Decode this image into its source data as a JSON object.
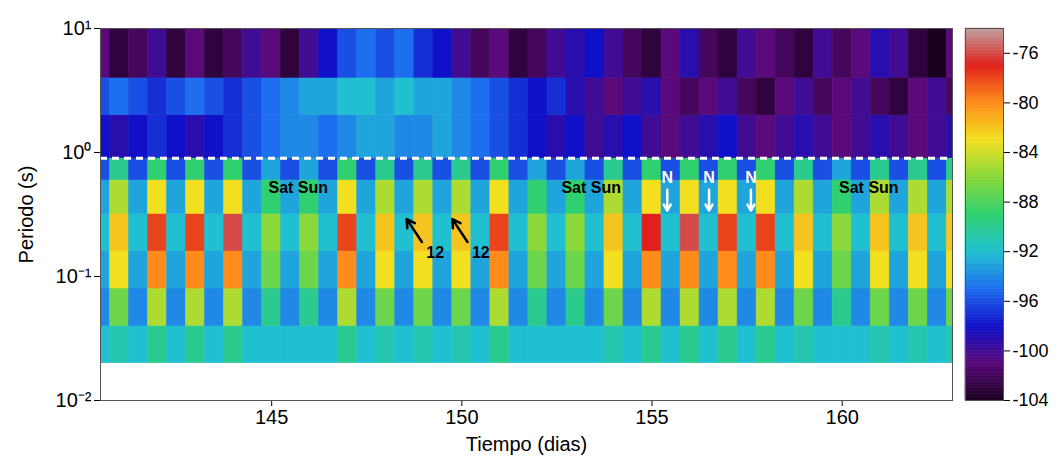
{
  "chart_data": {
    "type": "heatmap",
    "x_label": "Tiempo (dias)",
    "y_label": "Periodo (s)",
    "xlim": [
      140.5,
      162.9
    ],
    "xticks": [
      145,
      150,
      155,
      160
    ],
    "ylim": [
      0.01,
      10
    ],
    "yticks": [
      {
        "value": 0.01,
        "label": "10⁻²"
      },
      {
        "value": 0.1,
        "label": "10⁻¹"
      },
      {
        "value": 1,
        "label": "10⁰"
      },
      {
        "value": 10,
        "label": "10¹"
      }
    ],
    "log": "y",
    "grid": false,
    "cells": {
      "x_edges": [
        140.25,
        140.75,
        141.25,
        141.75,
        142.25,
        142.75,
        143.25,
        143.75,
        144.25,
        144.75,
        145.25,
        145.75,
        146.25,
        146.75,
        147.25,
        147.75,
        148.25,
        148.75,
        149.25,
        149.75,
        150.25,
        150.75,
        151.25,
        151.75,
        152.25,
        152.75,
        153.25,
        153.75,
        154.25,
        154.75,
        155.25,
        155.75,
        156.25,
        156.75,
        157.25,
        157.75,
        158.25,
        158.75,
        159.25,
        159.75,
        160.25,
        160.75,
        161.25,
        161.75,
        162.25,
        162.75,
        163.25
      ],
      "y_edges": [
        0.02,
        0.04,
        0.08,
        0.16,
        0.32,
        0.6,
        0.9,
        2,
        4,
        10
      ],
      "values": [
        [
          -92,
          -91,
          -92,
          -90,
          -92,
          -90,
          -92,
          -90,
          -92,
          -92,
          -92,
          -92,
          -92,
          -90,
          -92,
          -91,
          -92,
          -91,
          -92,
          -91,
          -92,
          -90,
          -92,
          -92,
          -92,
          -92,
          -92,
          -91,
          -92,
          -90,
          -92,
          -90,
          -92,
          -90,
          -92,
          -90,
          -92,
          -91,
          -92,
          -92,
          -92,
          -91,
          -92,
          -91,
          -92,
          -91
        ],
        [
          -94,
          -87,
          -94,
          -85,
          -94,
          -85,
          -94,
          -85,
          -94,
          -90,
          -94,
          -90,
          -94,
          -85,
          -94,
          -87,
          -94,
          -87,
          -94,
          -87,
          -94,
          -85,
          -94,
          -90,
          -94,
          -90,
          -94,
          -87,
          -94,
          -85,
          -94,
          -85,
          -94,
          -85,
          -94,
          -85,
          -94,
          -87,
          -94,
          -90,
          -94,
          -87,
          -94,
          -87,
          -94,
          -87
        ],
        [
          -93,
          -83,
          -93,
          -80,
          -93,
          -80,
          -93,
          -80,
          -93,
          -87,
          -93,
          -87,
          -93,
          -80,
          -93,
          -83,
          -93,
          -83,
          -93,
          -83,
          -93,
          -80,
          -93,
          -87,
          -93,
          -87,
          -93,
          -83,
          -93,
          -80,
          -93,
          -80,
          -93,
          -80,
          -93,
          -80,
          -93,
          -83,
          -93,
          -87,
          -93,
          -83,
          -93,
          -83,
          -93,
          -83
        ],
        [
          -92,
          -82,
          -92,
          -78,
          -92,
          -78,
          -92,
          -76,
          -92,
          -86,
          -92,
          -86,
          -92,
          -78,
          -92,
          -82,
          -92,
          -82,
          -92,
          -82,
          -92,
          -78,
          -92,
          -86,
          -92,
          -86,
          -92,
          -82,
          -92,
          -77,
          -92,
          -76,
          -92,
          -78,
          -92,
          -78,
          -92,
          -82,
          -92,
          -86,
          -92,
          -82,
          -92,
          -82,
          -92,
          -82
        ],
        [
          -93,
          -85,
          -93,
          -83,
          -93,
          -83,
          -93,
          -83,
          -93,
          -89,
          -93,
          -89,
          -93,
          -83,
          -93,
          -85,
          -93,
          -85,
          -93,
          -85,
          -93,
          -83,
          -93,
          -89,
          -93,
          -89,
          -93,
          -85,
          -93,
          -83,
          -93,
          -83,
          -93,
          -83,
          -93,
          -83,
          -93,
          -85,
          -93,
          -89,
          -93,
          -85,
          -93,
          -85,
          -93,
          -85
        ],
        [
          -96,
          -90,
          -96,
          -89,
          -96,
          -89,
          -96,
          -89,
          -96,
          -93,
          -96,
          -93,
          -96,
          -89,
          -96,
          -90,
          -96,
          -90,
          -96,
          -90,
          -96,
          -89,
          -96,
          -93,
          -96,
          -93,
          -96,
          -90,
          -96,
          -89,
          -96,
          -89,
          -96,
          -89,
          -96,
          -89,
          -96,
          -90,
          -96,
          -93,
          -96,
          -90,
          -96,
          -90,
          -96,
          -90
        ],
        [
          -98,
          -99,
          -98,
          -97,
          -98,
          -99,
          -98,
          -97,
          -96,
          -95,
          -94,
          -94,
          -95,
          -94,
          -93,
          -93,
          -94,
          -94,
          -93,
          -94,
          -95,
          -96,
          -97,
          -98,
          -99,
          -98,
          -100,
          -99,
          -98,
          -100,
          -101,
          -100,
          -99,
          -98,
          -100,
          -101,
          -100,
          -99,
          -100,
          -101,
          -100,
          -99,
          -100,
          -101,
          -100,
          -99
        ],
        [
          -96,
          -95,
          -96,
          -97,
          -96,
          -95,
          -96,
          -97,
          -96,
          -95,
          -94,
          -93,
          -93,
          -92,
          -92,
          -93,
          -92,
          -93,
          -93,
          -94,
          -95,
          -96,
          -97,
          -98,
          -97,
          -99,
          -100,
          -101,
          -100,
          -99,
          -101,
          -102,
          -101,
          -100,
          -102,
          -103,
          -101,
          -100,
          -102,
          -101,
          -100,
          -102,
          -103,
          -101,
          -100,
          -102
        ],
        [
          -101,
          -103,
          -102,
          -100,
          -103,
          -101,
          -103,
          -102,
          -100,
          -101,
          -103,
          -100,
          -98,
          -96,
          -95,
          -96,
          -95,
          -97,
          -98,
          -100,
          -102,
          -101,
          -103,
          -102,
          -100,
          -99,
          -98,
          -100,
          -102,
          -103,
          -101,
          -99,
          -102,
          -103,
          -100,
          -101,
          -102,
          -103,
          -100,
          -102,
          -101,
          -99,
          -100,
          -103,
          -104,
          -101
        ]
      ]
    },
    "colorbar": {
      "range": [
        -104,
        -74
      ],
      "ticks": [
        -104,
        -100,
        -96,
        -92,
        -88,
        -84,
        -80,
        -76
      ]
    },
    "reference_lines": [
      {
        "y": 0.9,
        "color": "white",
        "line_style": "dashed"
      }
    ],
    "annotations": [
      {
        "text": "Sat Sun",
        "x": 145.7,
        "y": 0.52,
        "color": "black"
      },
      {
        "text": "Sat Sun",
        "x": 153.4,
        "y": 0.52,
        "color": "black"
      },
      {
        "text": "Sat Sun",
        "x": 160.7,
        "y": 0.52,
        "color": "black"
      },
      {
        "text": "12",
        "x": 149.3,
        "y": 0.155,
        "color": "black"
      },
      {
        "text": "12",
        "x": 150.5,
        "y": 0.155,
        "color": "black"
      },
      {
        "text": "N",
        "x": 155.4,
        "y": 0.62,
        "color": "white"
      },
      {
        "text": "N",
        "x": 156.5,
        "y": 0.62,
        "color": "white"
      },
      {
        "text": "N",
        "x": 157.6,
        "y": 0.62,
        "color": "white"
      }
    ],
    "arrows": [
      {
        "x1": 148.95,
        "y1": 0.19,
        "x2": 148.55,
        "y2": 0.29,
        "color": "black"
      },
      {
        "x1": 150.15,
        "y1": 0.19,
        "x2": 149.75,
        "y2": 0.29,
        "color": "black"
      },
      {
        "x1": 155.4,
        "y1": 0.5,
        "x2": 155.4,
        "y2": 0.34,
        "color": "white"
      },
      {
        "x1": 156.5,
        "y1": 0.5,
        "x2": 156.5,
        "y2": 0.34,
        "color": "white"
      },
      {
        "x1": 157.6,
        "y1": 0.5,
        "x2": 157.6,
        "y2": 0.34,
        "color": "white"
      }
    ]
  }
}
